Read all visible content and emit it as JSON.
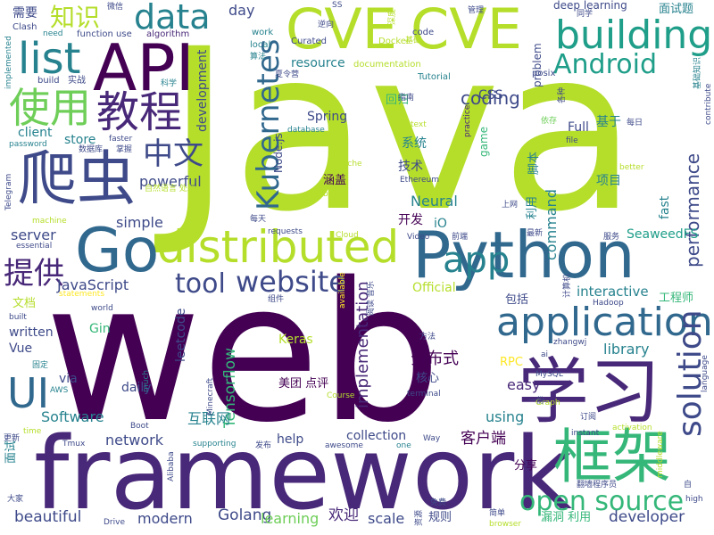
{
  "cloud": {
    "background": "#ffffff",
    "palette": [
      "#440154",
      "#482878",
      "#3e4a89",
      "#31688e",
      "#26828e",
      "#1f9e89",
      "#35b779",
      "#6ece58",
      "#b5de2b",
      "#fde725"
    ],
    "words": [
      {
        "text": "Java",
        "weight": 100,
        "color": "#b5de2b"
      },
      {
        "text": "web",
        "weight": 95,
        "color": "#440154"
      },
      {
        "text": "framework",
        "weight": 60,
        "color": "#482878"
      },
      {
        "text": "Python",
        "weight": 45,
        "color": "#31688e"
      },
      {
        "text": "学习",
        "weight": 44,
        "color": "#482878"
      },
      {
        "text": "CVE",
        "weight": 40,
        "color": "#b5de2b"
      },
      {
        "text": "CVE",
        "weight": 40,
        "color": "#b5de2b"
      },
      {
        "text": "API",
        "weight": 42,
        "color": "#440154"
      },
      {
        "text": "Go",
        "weight": 40,
        "color": "#31688e"
      },
      {
        "text": "框架",
        "weight": 38,
        "color": "#35b779"
      },
      {
        "text": "爬虫",
        "weight": 38,
        "color": "#3e4a89"
      },
      {
        "text": "distributed",
        "weight": 36,
        "color": "#b5de2b"
      },
      {
        "text": "application",
        "weight": 34,
        "color": "#31688e"
      },
      {
        "text": "building",
        "weight": 32,
        "color": "#1f9e89"
      },
      {
        "text": "data",
        "weight": 30,
        "color": "#26828e"
      },
      {
        "text": "list",
        "weight": 32,
        "color": "#26828e"
      },
      {
        "text": "教程",
        "weight": 32,
        "color": "#482878"
      },
      {
        "text": "使用",
        "weight": 30,
        "color": "#6ece58"
      },
      {
        "text": "UI",
        "weight": 30,
        "color": "#31688e"
      },
      {
        "text": "Kubernetes",
        "weight": 26,
        "color": "#31688e"
      },
      {
        "text": "solution",
        "weight": 26,
        "color": "#3e4a89"
      },
      {
        "text": "open source",
        "weight": 26,
        "color": "#35b779"
      },
      {
        "text": "app",
        "weight": 26,
        "color": "#26828e"
      },
      {
        "text": "website",
        "weight": 24,
        "color": "#3e4a89"
      },
      {
        "text": "Android",
        "weight": 22,
        "color": "#1f9e89"
      },
      {
        "text": "tool",
        "weight": 22,
        "color": "#3e4a89"
      },
      {
        "text": "提供",
        "weight": 22,
        "color": "#482878"
      },
      {
        "text": "中文",
        "weight": 22,
        "color": "#3e4a89"
      },
      {
        "text": "知识",
        "weight": 18,
        "color": "#b5de2b"
      },
      {
        "text": "coding",
        "weight": 16,
        "color": "#3e4a89"
      },
      {
        "text": "performance",
        "weight": 16,
        "color": "#3e4a89"
      },
      {
        "text": "Tensorflow",
        "weight": 14,
        "color": "#35b779"
      },
      {
        "text": "implementation",
        "weight": 14,
        "color": "#482878"
      },
      {
        "text": "JavaScript",
        "weight": 13,
        "color": "#3e4a89"
      },
      {
        "text": "分布式",
        "weight": 14,
        "color": "#440154"
      },
      {
        "text": "客户端",
        "weight": 13,
        "color": "#440154"
      },
      {
        "text": "欢迎",
        "weight": 13,
        "color": "#482878"
      },
      {
        "text": "Golang",
        "weight": 13,
        "color": "#3e4a89"
      },
      {
        "text": "beautiful",
        "weight": 13,
        "color": "#3e4a89"
      },
      {
        "text": "developer",
        "weight": 13,
        "color": "#3e4a89"
      },
      {
        "text": "互联网",
        "weight": 13,
        "color": "#26828e"
      },
      {
        "text": "SeaweedFS",
        "weight": 11,
        "color": "#1f9e89"
      },
      {
        "text": "server",
        "weight": 12,
        "color": "#3e4a89"
      },
      {
        "text": "simple",
        "weight": 12,
        "color": "#3e4a89"
      },
      {
        "text": "powerful",
        "weight": 12,
        "color": "#3e4a89"
      },
      {
        "text": "Neural",
        "weight": 12,
        "color": "#26828e"
      },
      {
        "text": "command",
        "weight": 12,
        "color": "#26828e"
      },
      {
        "text": "network",
        "weight": 12,
        "color": "#3e4a89"
      },
      {
        "text": "modern",
        "weight": 12,
        "color": "#3e4a89"
      },
      {
        "text": "learning",
        "weight": 12,
        "color": "#6ece58"
      },
      {
        "text": "scale",
        "weight": 12,
        "color": "#3e4a89"
      },
      {
        "text": "Software",
        "weight": 12,
        "color": "#26828e"
      },
      {
        "text": "using",
        "weight": 12,
        "color": "#26828e"
      },
      {
        "text": "library",
        "weight": 12,
        "color": "#26828e"
      },
      {
        "text": "easy",
        "weight": 12,
        "color": "#482878"
      },
      {
        "text": "interactive",
        "weight": 12,
        "color": "#26828e"
      },
      {
        "text": "collection",
        "weight": 11,
        "color": "#3e4a89"
      },
      {
        "text": "daily",
        "weight": 11,
        "color": "#3e4a89"
      },
      {
        "text": "help",
        "weight": 11,
        "color": "#3e4a89"
      },
      {
        "text": "Spring",
        "weight": 11,
        "color": "#3e4a89"
      },
      {
        "text": "resource",
        "weight": 11,
        "color": "#26828e"
      },
      {
        "text": "development",
        "weight": 11,
        "color": "#3e4a89"
      },
      {
        "text": "day",
        "weight": 11,
        "color": "#3e4a89"
      },
      {
        "text": "Full",
        "weight": 11,
        "color": "#3e4a89"
      },
      {
        "text": "CSS",
        "weight": 11,
        "color": "#3e4a89"
      },
      {
        "text": "Vue",
        "weight": 11,
        "color": "#3e4a89"
      },
      {
        "text": "written",
        "weight": 11,
        "color": "#3e4a89"
      },
      {
        "text": "via",
        "weight": 11,
        "color": "#3e4a89"
      },
      {
        "text": "leetcode",
        "weight": 11,
        "color": "#3e4a89"
      },
      {
        "text": "Gin",
        "weight": 10,
        "color": "#35b779"
      },
      {
        "text": "Keras",
        "weight": 10,
        "color": "#b5de2b"
      },
      {
        "text": "Official",
        "weight": 10,
        "color": "#b5de2b"
      },
      {
        "text": "fast",
        "weight": 10,
        "color": "#26828e"
      },
      {
        "text": "store",
        "weight": 10,
        "color": "#26828e"
      },
      {
        "text": "client",
        "weight": 10,
        "color": "#26828e"
      },
      {
        "text": "iO",
        "weight": 10,
        "color": "#26828e"
      },
      {
        "text": "problem",
        "weight": 9,
        "color": "#3e4a89"
      },
      {
        "text": "game",
        "weight": 9,
        "color": "#35b779"
      },
      {
        "text": "Node.js",
        "weight": 9,
        "color": "#3e4a89"
      },
      {
        "text": "面试题",
        "weight": 9,
        "color": "#26828e"
      },
      {
        "text": "需要",
        "weight": 9,
        "color": "#3e4a89"
      },
      {
        "text": "系统",
        "weight": 9,
        "color": "#26828e"
      },
      {
        "text": "技术",
        "weight": 9,
        "color": "#3e4a89"
      },
      {
        "text": "开发",
        "weight": 9,
        "color": "#440154"
      },
      {
        "text": "涵盖",
        "weight": 9,
        "color": "#440154"
      },
      {
        "text": "利用",
        "weight": 9,
        "color": "#26828e"
      },
      {
        "text": "脚本",
        "weight": 9,
        "color": "#26828e"
      },
      {
        "text": "项目",
        "weight": 9,
        "color": "#26828e"
      },
      {
        "text": "基于",
        "weight": 9,
        "color": "#26828e"
      },
      {
        "text": "文档",
        "weight": 9,
        "color": "#b5de2b"
      },
      {
        "text": "包括",
        "weight": 9,
        "color": "#3e4a89"
      },
      {
        "text": "工程师",
        "weight": 9,
        "color": "#35b779"
      },
      {
        "text": "核心",
        "weight": 9,
        "color": "#3e4a89"
      },
      {
        "text": "美团 点评",
        "weight": 9,
        "color": "#440154"
      },
      {
        "text": "分享",
        "weight": 9,
        "color": "#440154"
      },
      {
        "text": "漏洞 利用",
        "weight": 9,
        "color": "#35b779"
      },
      {
        "text": "规则",
        "weight": 9,
        "color": "#3e4a89"
      },
      {
        "text": "面试",
        "weight": 9,
        "color": "#26828e"
      },
      {
        "text": "回归",
        "weight": 8,
        "color": "#35b779"
      },
      {
        "text": "RPC",
        "weight": 8,
        "color": "#fde725"
      },
      {
        "text": "deep learning",
        "weight": 8,
        "color": "#3e4a89"
      },
      {
        "text": "function use",
        "weight": 7,
        "color": "#3e4a89"
      },
      {
        "text": "algorithm",
        "weight": 7,
        "color": "#482878"
      },
      {
        "text": "Clash",
        "weight": 7,
        "color": "#3e4a89"
      },
      {
        "text": "work",
        "weight": 7,
        "color": "#26828e"
      },
      {
        "text": "local",
        "weight": 7,
        "color": "#26828e"
      },
      {
        "text": "Curated",
        "weight": 7,
        "color": "#3e4a89"
      },
      {
        "text": "code",
        "weight": 7,
        "color": "#3e4a89"
      },
      {
        "text": "Docker",
        "weight": 7,
        "color": "#b5de2b"
      },
      {
        "text": "build",
        "weight": 7,
        "color": "#3e4a89"
      },
      {
        "text": "实战",
        "weight": 7,
        "color": "#3e4a89"
      },
      {
        "text": "documentation",
        "weight": 7,
        "color": "#b5de2b"
      },
      {
        "text": "Tutorial",
        "weight": 7,
        "color": "#26828e"
      },
      {
        "text": "posix",
        "weight": 7,
        "color": "#3e4a89"
      },
      {
        "text": "practice",
        "weight": 6,
        "color": "#482878"
      },
      {
        "text": "text",
        "weight": 6,
        "color": "#b5de2b"
      },
      {
        "text": "database",
        "weight": 6,
        "color": "#26828e"
      },
      {
        "text": "Apache",
        "weight": 6,
        "color": "#b5de2b"
      },
      {
        "text": "Ethereum",
        "weight": 6,
        "color": "#3e4a89"
      },
      {
        "text": "billion",
        "weight": 6,
        "color": "#b5de2b"
      },
      {
        "text": "Cloud",
        "weight": 6,
        "color": "#b5de2b"
      },
      {
        "text": "requests",
        "weight": 6,
        "color": "#3e4a89"
      },
      {
        "text": "Video",
        "weight": 6,
        "color": "#3e4a89"
      },
      {
        "text": "password",
        "weight": 6,
        "color": "#26828e"
      },
      {
        "text": "faster",
        "weight": 6,
        "color": "#3e4a89"
      },
      {
        "text": "machine",
        "weight": 6,
        "color": "#b5de2b"
      },
      {
        "text": "essential",
        "weight": 6,
        "color": "#3e4a89"
      },
      {
        "text": "statements",
        "weight": 6,
        "color": "#fde725"
      },
      {
        "text": "world",
        "weight": 6,
        "color": "#3e4a89"
      },
      {
        "text": "built",
        "weight": 6,
        "color": "#3e4a89"
      },
      {
        "text": "Hadoop",
        "weight": 6,
        "color": "#3e4a89"
      },
      {
        "text": "MySQL",
        "weight": 6,
        "color": "#3e4a89"
      },
      {
        "text": "zhangwj",
        "weight": 6,
        "color": "#3e4a89"
      },
      {
        "text": "terminal",
        "weight": 6,
        "color": "#3e4a89"
      },
      {
        "text": "Course",
        "weight": 6,
        "color": "#b5de2b"
      },
      {
        "text": "Graph",
        "weight": 6,
        "color": "#b5de2b"
      },
      {
        "text": "AWS",
        "weight": 6,
        "color": "#26828e"
      },
      {
        "text": "time",
        "weight": 6,
        "color": "#b5de2b"
      },
      {
        "text": "Tmux",
        "weight": 6,
        "color": "#3e4a89"
      },
      {
        "text": "Alibaba",
        "weight": 6,
        "color": "#3e4a89"
      },
      {
        "text": "supporting",
        "weight": 6,
        "color": "#26828e"
      },
      {
        "text": "Boot",
        "weight": 6,
        "color": "#3e4a89"
      },
      {
        "text": "Minecraft",
        "weight": 6,
        "color": "#3e4a89"
      },
      {
        "text": "much",
        "weight": 6,
        "color": "#26828e"
      },
      {
        "text": "awesome",
        "weight": 6,
        "color": "#3e4a89"
      },
      {
        "text": "one",
        "weight": 6,
        "color": "#26828e"
      },
      {
        "text": "Way",
        "weight": 6,
        "color": "#3e4a89"
      },
      {
        "text": "instant",
        "weight": 6,
        "color": "#3e4a89"
      },
      {
        "text": "activation",
        "weight": 6,
        "color": "#b5de2b"
      },
      {
        "text": "middleware",
        "weight": 6,
        "color": "#b5de2b"
      },
      {
        "text": "Drive",
        "weight": 6,
        "color": "#3e4a89"
      },
      {
        "text": "browser",
        "weight": 6,
        "color": "#b5de2b"
      },
      {
        "text": "high",
        "weight": 6,
        "color": "#3e4a89"
      },
      {
        "text": "language",
        "weight": 6,
        "color": "#3e4a89"
      },
      {
        "text": "better",
        "weight": 6,
        "color": "#b5de2b"
      },
      {
        "text": "file",
        "weight": 6,
        "color": "#3e4a89"
      },
      {
        "text": "contribute",
        "weight": 6,
        "color": "#3e4a89"
      },
      {
        "text": "implemented",
        "weight": 6,
        "color": "#26828e"
      },
      {
        "text": "need",
        "weight": 6,
        "color": "#26828e"
      },
      {
        "text": "available",
        "weight": 6,
        "color": "#fde725"
      },
      {
        "text": "Telegram",
        "weight": 6,
        "color": "#3e4a89"
      },
      {
        "text": "SS",
        "weight": 6,
        "color": "#3e4a89"
      },
      {
        "text": "ai",
        "weight": 6,
        "color": "#3e4a89"
      },
      {
        "text": "微信",
        "weight": 6,
        "color": "#3e4a89"
      },
      {
        "text": "逆向",
        "weight": 6,
        "color": "#3e4a89"
      },
      {
        "text": "深度",
        "weight": 6,
        "color": "#b5de2b"
      },
      {
        "text": "管理",
        "weight": 6,
        "color": "#3e4a89"
      },
      {
        "text": "同学",
        "weight": 6,
        "color": "#3e4a89"
      },
      {
        "text": "基础",
        "weight": 6,
        "color": "#b5de2b"
      },
      {
        "text": "算法",
        "weight": 6,
        "color": "#26828e"
      },
      {
        "text": "夏令营",
        "weight": 6,
        "color": "#3e4a89"
      },
      {
        "text": "科学",
        "weight": 6,
        "color": "#26828e"
      },
      {
        "text": "指南",
        "weight": 6,
        "color": "#3e4a89"
      },
      {
        "text": "各种",
        "weight": 6,
        "color": "#3e4a89"
      },
      {
        "text": "基础知识",
        "weight": 6,
        "color": "#26828e"
      },
      {
        "text": "依存",
        "weight": 6,
        "color": "#6ece58"
      },
      {
        "text": "每日",
        "weight": 6,
        "color": "#3e4a89"
      },
      {
        "text": "数据库",
        "weight": 6,
        "color": "#3e4a89"
      },
      {
        "text": "掌握",
        "weight": 6,
        "color": "#3e4a89"
      },
      {
        "text": "自然语言 处理",
        "weight": 6,
        "color": "#b5de2b"
      },
      {
        "text": "上网",
        "weight": 6,
        "color": "#3e4a89"
      },
      {
        "text": "每天",
        "weight": 6,
        "color": "#3e4a89"
      },
      {
        "text": "前端",
        "weight": 6,
        "color": "#3e4a89"
      },
      {
        "text": "最新",
        "weight": 6,
        "color": "#3e4a89"
      },
      {
        "text": "服务",
        "weight": 6,
        "color": "#3e4a89"
      },
      {
        "text": "组件",
        "weight": 6,
        "color": "#3e4a89"
      },
      {
        "text": "阅读 音乐",
        "weight": 6,
        "color": "#3e4a89"
      },
      {
        "text": "计算机",
        "weight": 6,
        "color": "#3e4a89"
      },
      {
        "text": "方法",
        "weight": 6,
        "color": "#3e4a89"
      },
      {
        "text": "固定",
        "weight": 6,
        "color": "#26828e"
      },
      {
        "text": "一份",
        "weight": 6,
        "color": "#3e4a89"
      },
      {
        "text": "订阅",
        "weight": 6,
        "color": "#3e4a89"
      },
      {
        "text": "更新",
        "weight": 6,
        "color": "#3e4a89"
      },
      {
        "text": "发布",
        "weight": 6,
        "color": "#3e4a89"
      },
      {
        "text": "大家",
        "weight": 6,
        "color": "#3e4a89"
      },
      {
        "text": "免费",
        "weight": 6,
        "color": "#3e4a89"
      },
      {
        "text": "资源",
        "weight": 6,
        "color": "#3e4a89"
      },
      {
        "text": "简单",
        "weight": 6,
        "color": "#3e4a89"
      },
      {
        "text": "翻墙程序员",
        "weight": 6,
        "color": "#3e4a89"
      },
      {
        "text": "自",
        "weight": 6,
        "color": "#3e4a89"
      }
    ]
  }
}
